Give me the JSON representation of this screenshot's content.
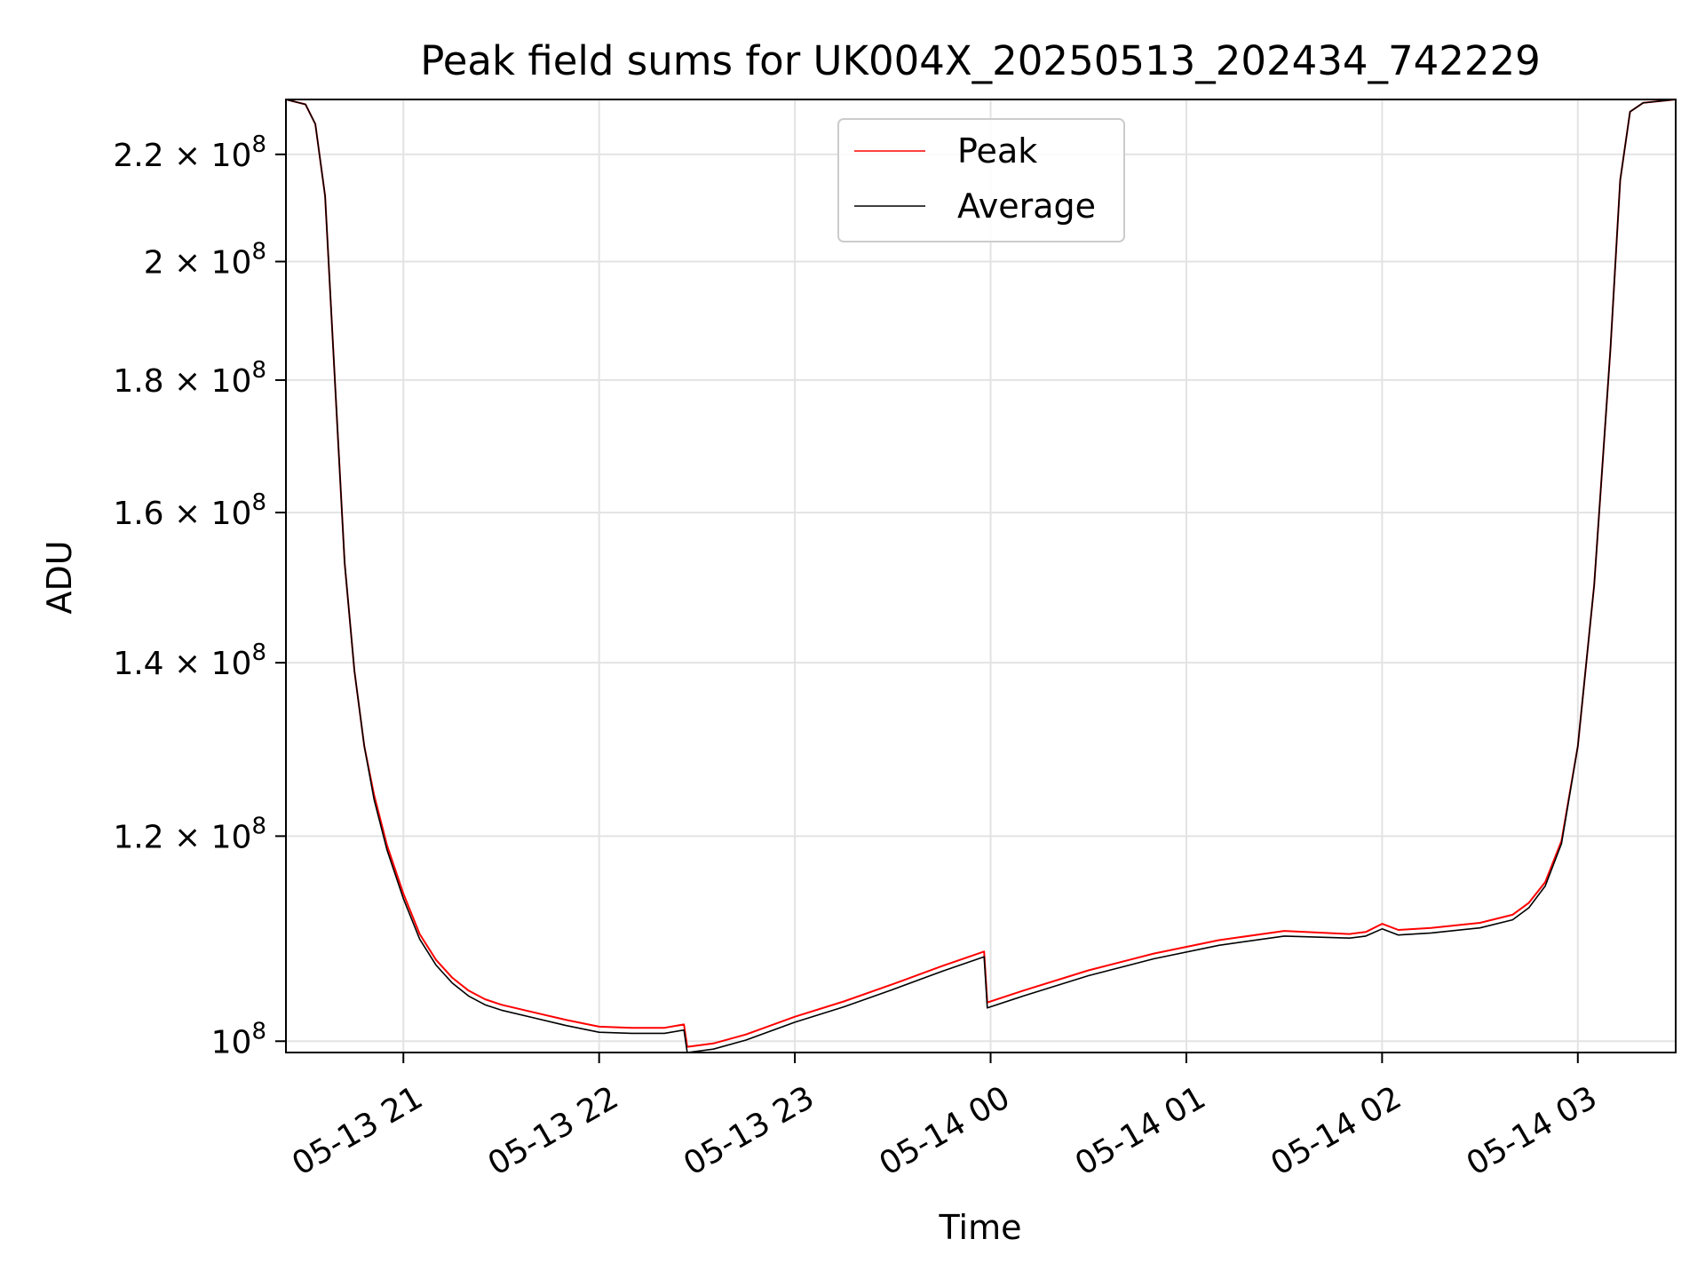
{
  "chart_data": {
    "type": "line",
    "title": "Peak field sums for UK004X_20250513_202434_742229",
    "xlabel": "Time",
    "ylabel": "ADU",
    "yscale": "log",
    "grid": true,
    "legend_position": "upper center",
    "xlim": [
      "2025-05-13 20:24",
      "2025-05-14 03:30"
    ],
    "ylim": [
      99000000,
      231000000
    ],
    "x_ticks": [
      {
        "value": "2025-05-13 21:00",
        "label": "05-13 21"
      },
      {
        "value": "2025-05-13 22:00",
        "label": "05-13 22"
      },
      {
        "value": "2025-05-13 23:00",
        "label": "05-13 23"
      },
      {
        "value": "2025-05-14 00:00",
        "label": "05-14 00"
      },
      {
        "value": "2025-05-14 01:00",
        "label": "05-14 01"
      },
      {
        "value": "2025-05-14 02:00",
        "label": "05-14 02"
      },
      {
        "value": "2025-05-14 03:00",
        "label": "05-14 03"
      }
    ],
    "y_ticks": [
      {
        "value": 100000000,
        "mantissa": "",
        "power": "8",
        "base": "10"
      },
      {
        "value": 120000000,
        "mantissa": "1.2",
        "power": "8",
        "base": "10"
      },
      {
        "value": 140000000,
        "mantissa": "1.4",
        "power": "8",
        "base": "10"
      },
      {
        "value": 160000000,
        "mantissa": "1.6",
        "power": "8",
        "base": "10"
      },
      {
        "value": 180000000,
        "mantissa": "1.8",
        "power": "8",
        "base": "10"
      },
      {
        "value": 200000000,
        "mantissa": "2",
        "power": "8",
        "base": "10"
      },
      {
        "value": 220000000,
        "mantissa": "2.2",
        "power": "8",
        "base": "10"
      }
    ],
    "x": [
      "2025-05-13 20:24",
      "2025-05-13 20:30",
      "2025-05-13 20:33",
      "2025-05-13 20:36",
      "2025-05-13 20:39",
      "2025-05-13 20:42",
      "2025-05-13 20:45",
      "2025-05-13 20:48",
      "2025-05-13 20:51",
      "2025-05-13 20:55",
      "2025-05-13 21:00",
      "2025-05-13 21:05",
      "2025-05-13 21:10",
      "2025-05-13 21:15",
      "2025-05-13 21:20",
      "2025-05-13 21:25",
      "2025-05-13 21:30",
      "2025-05-13 21:40",
      "2025-05-13 21:50",
      "2025-05-13 22:00",
      "2025-05-13 22:10",
      "2025-05-13 22:20",
      "2025-05-13 22:26",
      "2025-05-13 22:27",
      "2025-05-13 22:35",
      "2025-05-13 22:45",
      "2025-05-13 23:00",
      "2025-05-13 23:15",
      "2025-05-13 23:30",
      "2025-05-13 23:45",
      "2025-05-13 23:58",
      "2025-05-13 23:59",
      "2025-05-14 00:10",
      "2025-05-14 00:30",
      "2025-05-14 00:50",
      "2025-05-14 01:10",
      "2025-05-14 01:30",
      "2025-05-14 01:50",
      "2025-05-14 01:55",
      "2025-05-14 02:00",
      "2025-05-14 02:05",
      "2025-05-14 02:15",
      "2025-05-14 02:30",
      "2025-05-14 02:40",
      "2025-05-14 02:45",
      "2025-05-14 02:50",
      "2025-05-14 02:55",
      "2025-05-14 03:00",
      "2025-05-14 03:05",
      "2025-05-14 03:10",
      "2025-05-14 03:13",
      "2025-05-14 03:16",
      "2025-05-14 03:20",
      "2025-05-14 03:30"
    ],
    "series": [
      {
        "name": "Peak",
        "color": "#ff0000",
        "values": [
          231000000,
          230000000,
          226000000,
          212000000,
          180000000,
          153000000,
          139000000,
          130000000,
          124500000,
          119000000,
          114000000,
          110000000,
          107500000,
          105800000,
          104600000,
          103800000,
          103300000,
          102600000,
          101900000,
          101300000,
          101200000,
          101200000,
          101500000,
          99500000,
          99800000,
          100600000,
          102200000,
          103600000,
          105200000,
          106900000,
          108300000,
          103500000,
          104600000,
          106500000,
          108100000,
          109400000,
          110300000,
          110000000,
          110200000,
          111000000,
          110400000,
          110600000,
          111100000,
          111900000,
          113100000,
          115200000,
          119500000,
          130000000,
          150000000,
          185000000,
          215000000,
          228500000,
          230300000,
          231000000
        ]
      },
      {
        "name": "Average",
        "color": "#000000",
        "values": [
          231000000,
          230000000,
          226000000,
          212000000,
          180000000,
          153000000,
          139000000,
          130000000,
          124000000,
          118500000,
          113500000,
          109500000,
          107000000,
          105300000,
          104100000,
          103300000,
          102800000,
          102100000,
          101400000,
          100800000,
          100700000,
          100700000,
          101000000,
          99000000,
          99300000,
          100100000,
          101700000,
          103100000,
          104700000,
          106400000,
          107800000,
          103000000,
          104100000,
          106000000,
          107600000,
          108900000,
          109800000,
          109600000,
          109800000,
          110500000,
          109900000,
          110100000,
          110600000,
          111400000,
          112600000,
          114800000,
          119200000,
          130000000,
          150000000,
          185000000,
          215000000,
          228500000,
          230300000,
          231000000
        ]
      }
    ]
  }
}
